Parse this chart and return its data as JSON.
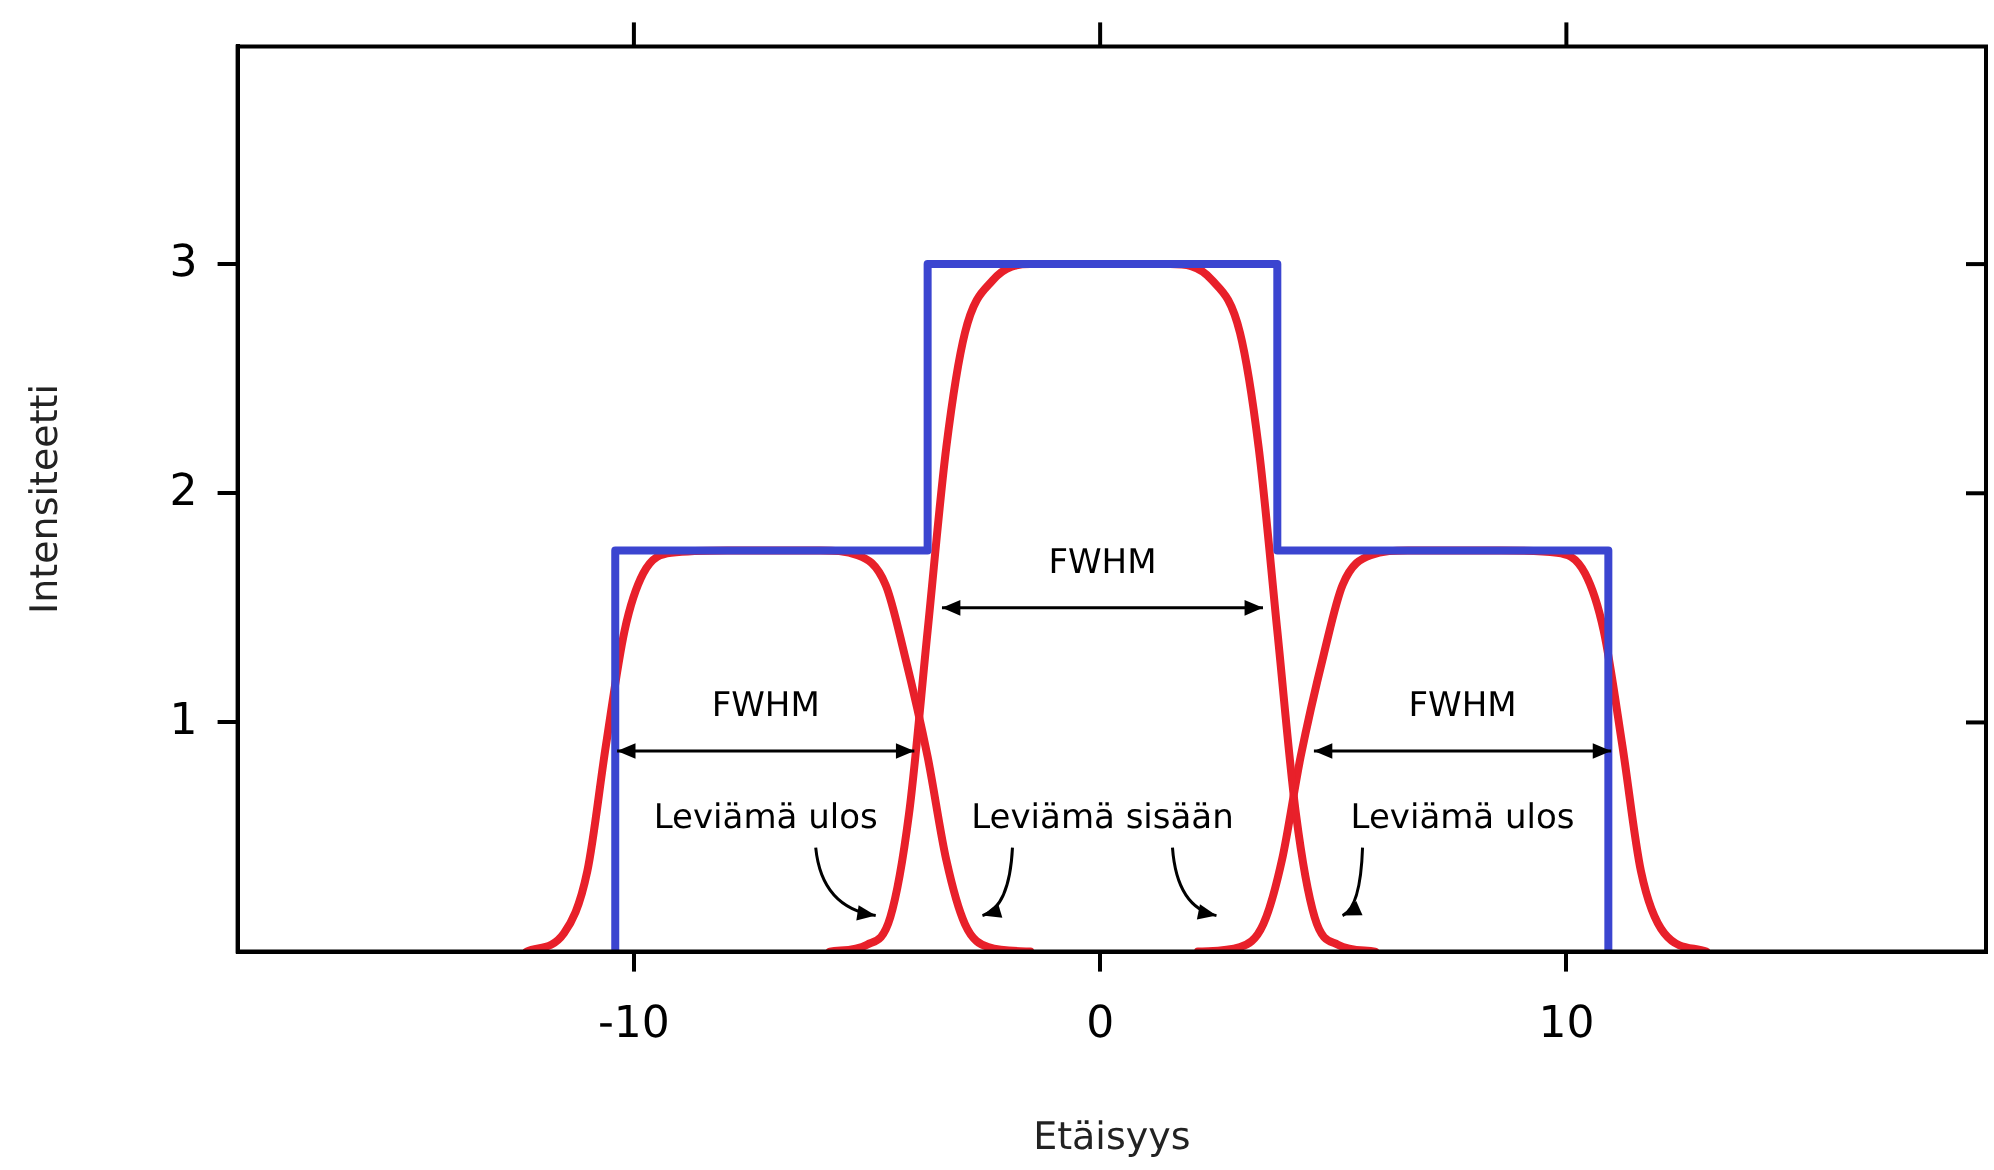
{
  "chart_data": {
    "type": "line",
    "xlabel": "Etäisyys",
    "ylabel": "Intensiteetti",
    "xlim": [
      -18.5,
      19
    ],
    "ylim": [
      0,
      3.95
    ],
    "xticks": [
      -10,
      0,
      10
    ],
    "yticks": [
      1,
      2,
      3
    ],
    "marker": "none",
    "line_style": "solid",
    "series": [
      {
        "color": "#3b45d0",
        "x": [
          -10.4,
          -10.4,
          -3.7,
          -3.7,
          3.8,
          3.8,
          10.9,
          10.9
        ],
        "values": [
          0,
          1.75,
          1.75,
          3,
          3,
          1.75,
          1.75,
          0
        ]
      },
      {
        "color": "#e8202a",
        "x": [
          -12.3,
          -11.5,
          -11,
          -10.6,
          -10.2,
          -9.8,
          -9.2,
          -8,
          -6,
          -5.2,
          -4.6,
          -4.2,
          -3.7,
          -3.3,
          -2.9,
          -2.4,
          -1.5
        ],
        "values": [
          0,
          0.08,
          0.35,
          0.9,
          1.4,
          1.65,
          1.74,
          1.75,
          1.75,
          1.73,
          1.6,
          1.3,
          0.85,
          0.4,
          0.12,
          0.02,
          0
        ]
      },
      {
        "color": "#e8202a",
        "x": [
          -5.8,
          -5,
          -4.5,
          -4.1,
          -3.7,
          -3.3,
          -2.9,
          -2.3,
          -1.5,
          1.5,
          2.4,
          3,
          3.4,
          3.8,
          4.2,
          4.6,
          5.1,
          5.9
        ],
        "values": [
          0,
          0.03,
          0.15,
          0.6,
          1.4,
          2.2,
          2.7,
          2.93,
          3,
          3,
          2.93,
          2.7,
          2.2,
          1.4,
          0.6,
          0.15,
          0.03,
          0
        ]
      },
      {
        "color": "#e8202a",
        "x": [
          2.1,
          3,
          3.5,
          3.9,
          4.3,
          4.8,
          5.2,
          5.8,
          6.6,
          8.6,
          9.8,
          10.4,
          10.8,
          11.2,
          11.6,
          12.1,
          13
        ],
        "values": [
          0,
          0.02,
          0.12,
          0.4,
          0.85,
          1.3,
          1.6,
          1.73,
          1.75,
          1.75,
          1.74,
          1.65,
          1.4,
          0.9,
          0.35,
          0.08,
          0
        ]
      }
    ],
    "annotations": [
      "FWHM",
      "FWHM",
      "FWHM",
      "Leviämä ulos",
      "Leviämä sisään",
      "Leviämä ulos"
    ]
  }
}
